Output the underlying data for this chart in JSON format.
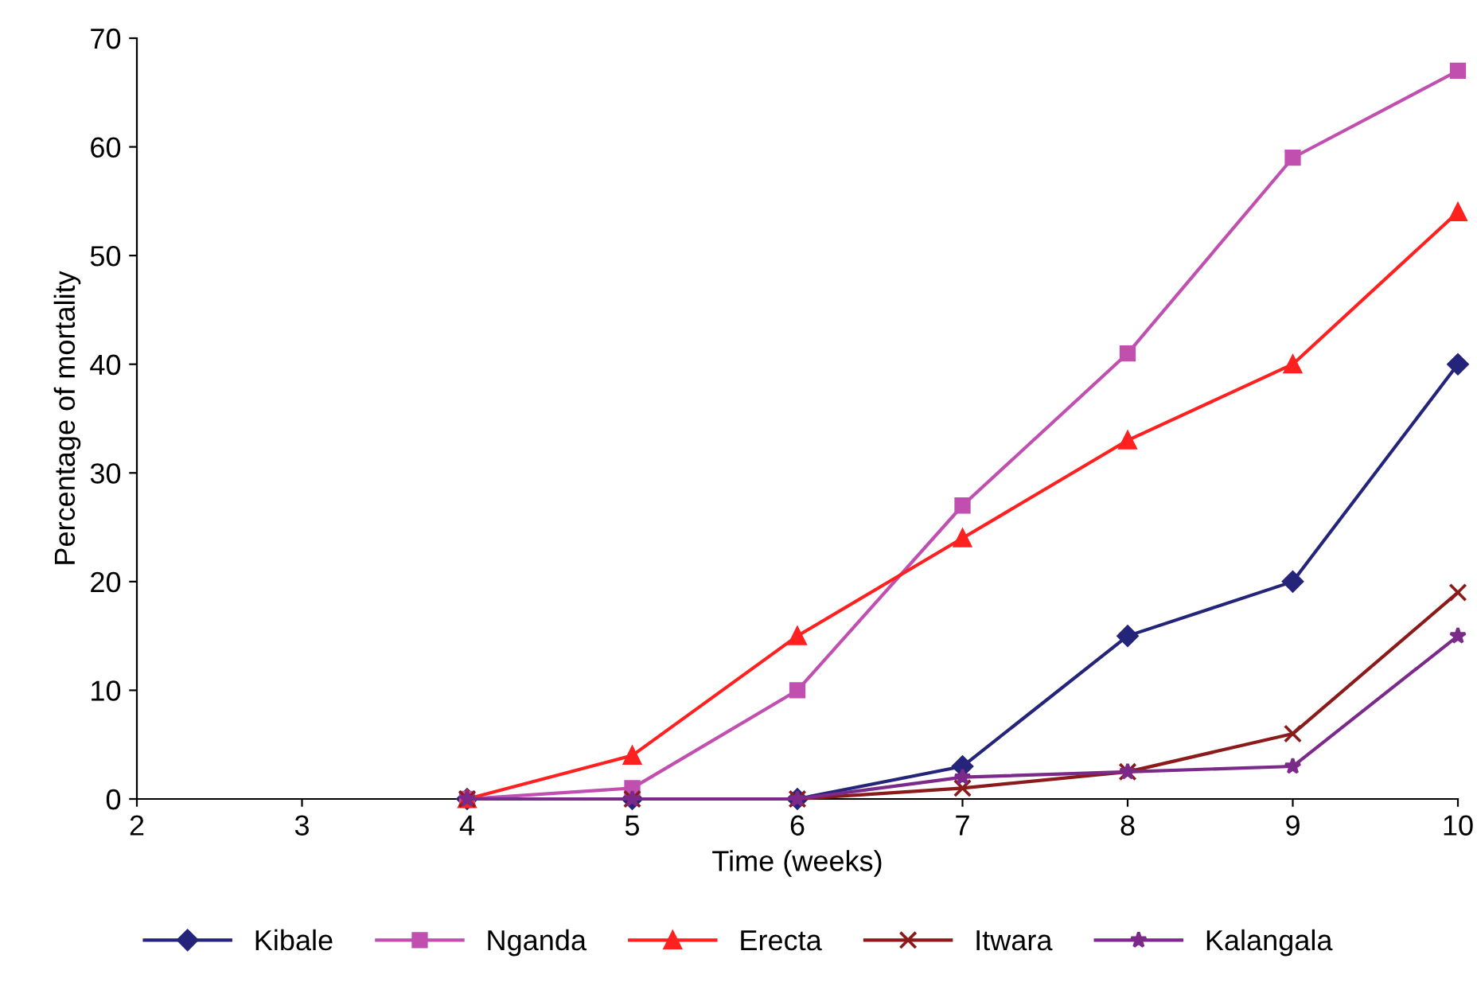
{
  "chart_data": {
    "type": "line",
    "xlabel": "Time (weeks)",
    "ylabel": "Percentage of mortality",
    "x": [
      4,
      5,
      6,
      7,
      8,
      9,
      10
    ],
    "xlim": [
      2,
      10
    ],
    "xticks": [
      2,
      3,
      4,
      5,
      6,
      7,
      8,
      9,
      10
    ],
    "ylim": [
      0,
      70
    ],
    "yticks": [
      0,
      10,
      20,
      30,
      40,
      50,
      60,
      70
    ],
    "grid": false,
    "legend": "bottom",
    "line_style": "solid",
    "series": [
      {
        "name": "Kibale",
        "color": "#24247a",
        "marker": "diamond",
        "values": [
          0,
          0,
          0,
          3,
          15,
          20,
          40
        ]
      },
      {
        "name": "Nganda",
        "color": "#c04fb0",
        "marker": "square",
        "values": [
          0,
          1,
          10,
          27,
          41,
          59,
          67
        ]
      },
      {
        "name": "Erecta",
        "color": "#ff2020",
        "marker": "triangle",
        "values": [
          0,
          4,
          15,
          24,
          33,
          40,
          54
        ]
      },
      {
        "name": "Itwara",
        "color": "#8b1a1a",
        "marker": "cross",
        "values": [
          0,
          0,
          0,
          1,
          2.5,
          6,
          19
        ]
      },
      {
        "name": "Kalangala",
        "color": "#7b2a8a",
        "marker": "star",
        "values": [
          0,
          0,
          0,
          2,
          2.5,
          3,
          15
        ]
      }
    ]
  }
}
